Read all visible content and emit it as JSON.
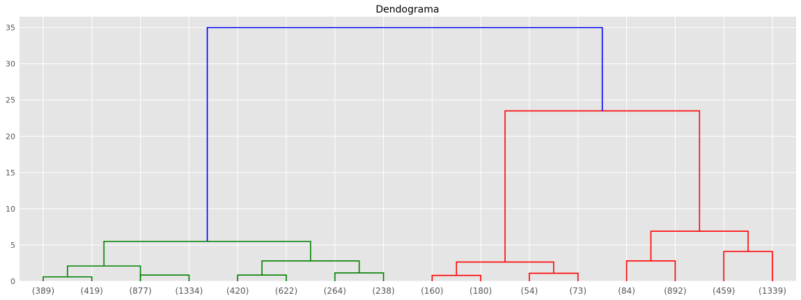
{
  "chart_data": {
    "type": "dendrogram",
    "title": "Dendograma",
    "xlabel": "",
    "ylabel": "",
    "ylim": [
      0,
      36.5
    ],
    "y_ticks": [
      0,
      5,
      10,
      15,
      20,
      25,
      30,
      35
    ],
    "grid": true,
    "leaves": [
      "(389)",
      "(419)",
      "(877)",
      "(1334)",
      "(420)",
      "(622)",
      "(264)",
      "(238)",
      "(160)",
      "(180)",
      "(54)",
      "(73)",
      "(84)",
      "(892)",
      "(459)",
      "(1339)"
    ],
    "merges": [
      {
        "left": "leaf:0",
        "right": "leaf:1",
        "height": 0.6,
        "color": "#008000"
      },
      {
        "left": "merge:0",
        "right": "leaf:2",
        "height": 2.1,
        "color": "#008000"
      },
      {
        "left": "leaf:2",
        "right": "leaf:3",
        "height": 0.85,
        "color": "#008000"
      },
      {
        "left": "leaf:4",
        "right": "leaf:5",
        "height": 0.85,
        "color": "#008000"
      },
      {
        "left": "leaf:6",
        "right": "leaf:7",
        "height": 1.15,
        "color": "#008000"
      },
      {
        "left": "merge:3",
        "right": "merge:4",
        "height": 2.8,
        "color": "#008000"
      },
      {
        "left": "merge:1",
        "right": "merge:5",
        "height": 5.5,
        "color": "#008000"
      },
      {
        "left": "leaf:8",
        "right": "leaf:9",
        "height": 0.8,
        "color": "#ff0000"
      },
      {
        "left": "leaf:10",
        "right": "leaf:11",
        "height": 1.1,
        "color": "#ff0000"
      },
      {
        "left": "merge:7",
        "right": "merge:8",
        "height": 2.65,
        "color": "#ff0000"
      },
      {
        "left": "leaf:12",
        "right": "leaf:13",
        "height": 2.8,
        "color": "#ff0000"
      },
      {
        "left": "leaf:14",
        "right": "leaf:15",
        "height": 4.1,
        "color": "#ff0000"
      },
      {
        "left": "merge:10",
        "right": "merge:11",
        "height": 6.9,
        "color": "#ff0000"
      },
      {
        "left": "merge:9",
        "right": "merge:12",
        "height": 23.5,
        "color": "#ff0000"
      },
      {
        "left": "merge:6",
        "right": "merge:13",
        "height": 35.0,
        "color": "#0000ff"
      }
    ]
  }
}
